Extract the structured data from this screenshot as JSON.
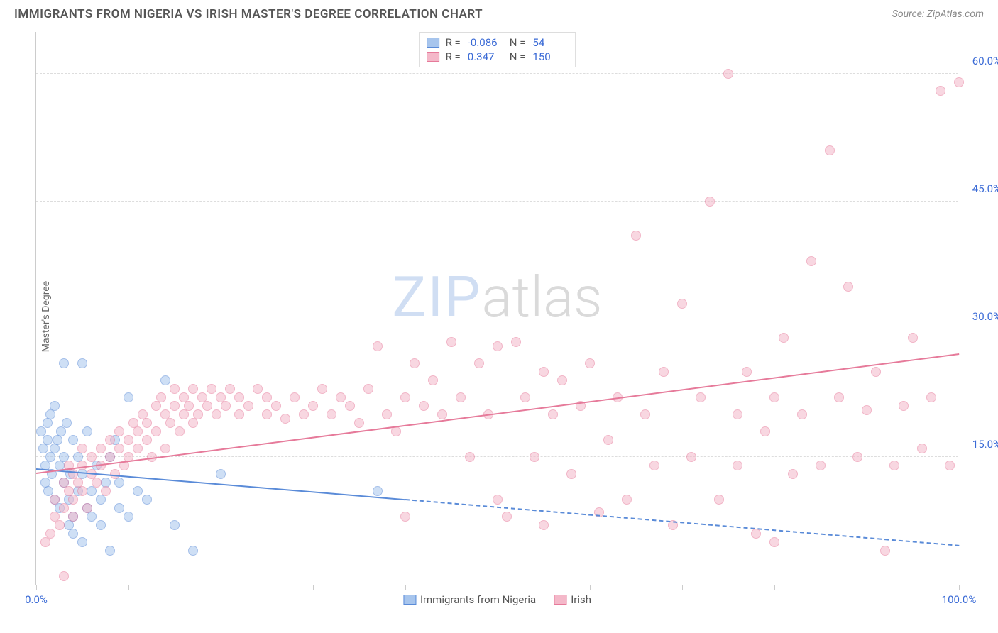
{
  "header": {
    "title": "IMMIGRANTS FROM NIGERIA VS IRISH MASTER'S DEGREE CORRELATION CHART",
    "source_label": "Source:",
    "source_name": "ZipAtlas.com"
  },
  "watermark": {
    "part1": "ZIP",
    "part2": "atlas"
  },
  "chart": {
    "type": "scatter",
    "ylabel": "Master's Degree",
    "xlim": [
      0,
      100
    ],
    "ylim": [
      0,
      65
    ],
    "xtick_min_label": "0.0%",
    "xtick_max_label": "100.0%",
    "ytick_labels": [
      "15.0%",
      "30.0%",
      "45.0%",
      "60.0%"
    ],
    "ytick_values": [
      15,
      30,
      45,
      60
    ],
    "xticks": [
      0,
      10,
      20,
      30,
      40,
      50,
      60,
      70,
      80,
      90,
      100
    ],
    "grid_color": "#dddddd",
    "axis_color": "#cccccc",
    "background_color": "#ffffff",
    "tick_label_color": "#3b6bd6",
    "point_radius": 7,
    "point_opacity": 0.55,
    "series": [
      {
        "name": "Immigrants from Nigeria",
        "stroke": "#5a8bd8",
        "fill": "#a7c5ed",
        "R": "-0.086",
        "N": "54",
        "trend": {
          "y_at_x0": 13.5,
          "y_at_x100": 4.5,
          "solid_until_x": 40
        },
        "points": [
          [
            0.5,
            18
          ],
          [
            0.8,
            16
          ],
          [
            1,
            14
          ],
          [
            1,
            12
          ],
          [
            1.2,
            17
          ],
          [
            1.2,
            19
          ],
          [
            1.3,
            11
          ],
          [
            1.5,
            15
          ],
          [
            1.5,
            20
          ],
          [
            1.7,
            13
          ],
          [
            2,
            10
          ],
          [
            2,
            16
          ],
          [
            2,
            21
          ],
          [
            2.3,
            17
          ],
          [
            2.5,
            14
          ],
          [
            2.5,
            9
          ],
          [
            2.7,
            18
          ],
          [
            3,
            12
          ],
          [
            3,
            15
          ],
          [
            3,
            26
          ],
          [
            3.3,
            19
          ],
          [
            3.5,
            7
          ],
          [
            3.5,
            10
          ],
          [
            3.7,
            13
          ],
          [
            4,
            17
          ],
          [
            4,
            8
          ],
          [
            4,
            6
          ],
          [
            4.5,
            11
          ],
          [
            4.5,
            15
          ],
          [
            5,
            13
          ],
          [
            5,
            26
          ],
          [
            5,
            5
          ],
          [
            5.5,
            9
          ],
          [
            5.5,
            18
          ],
          [
            6,
            8
          ],
          [
            6,
            11
          ],
          [
            6.5,
            14
          ],
          [
            7,
            10
          ],
          [
            7,
            7
          ],
          [
            7.5,
            12
          ],
          [
            8,
            4
          ],
          [
            8,
            15
          ],
          [
            8.5,
            17
          ],
          [
            9,
            9
          ],
          [
            9,
            12
          ],
          [
            10,
            22
          ],
          [
            10,
            8
          ],
          [
            11,
            11
          ],
          [
            12,
            10
          ],
          [
            14,
            24
          ],
          [
            15,
            7
          ],
          [
            17,
            4
          ],
          [
            20,
            13
          ],
          [
            37,
            11
          ]
        ]
      },
      {
        "name": "Irish",
        "stroke": "#e67a9a",
        "fill": "#f4b8c9",
        "R": "0.347",
        "N": "150",
        "trend": {
          "y_at_x0": 13,
          "y_at_x100": 27,
          "solid_until_x": 100
        },
        "points": [
          [
            1,
            5
          ],
          [
            1.5,
            6
          ],
          [
            2,
            8
          ],
          [
            2,
            10
          ],
          [
            2.5,
            7
          ],
          [
            3,
            9
          ],
          [
            3,
            12
          ],
          [
            3,
            1
          ],
          [
            3.5,
            11
          ],
          [
            3.5,
            14
          ],
          [
            4,
            10
          ],
          [
            4,
            8
          ],
          [
            4,
            13
          ],
          [
            4.5,
            12
          ],
          [
            5,
            11
          ],
          [
            5,
            14
          ],
          [
            5,
            16
          ],
          [
            5.5,
            9
          ],
          [
            6,
            13
          ],
          [
            6,
            15
          ],
          [
            6.5,
            12
          ],
          [
            7,
            14
          ],
          [
            7,
            16
          ],
          [
            7.5,
            11
          ],
          [
            8,
            15
          ],
          [
            8,
            17
          ],
          [
            8.5,
            13
          ],
          [
            9,
            16
          ],
          [
            9,
            18
          ],
          [
            9.5,
            14
          ],
          [
            10,
            17
          ],
          [
            10,
            15
          ],
          [
            10.5,
            19
          ],
          [
            11,
            16
          ],
          [
            11,
            18
          ],
          [
            11.5,
            20
          ],
          [
            12,
            17
          ],
          [
            12,
            19
          ],
          [
            12.5,
            15
          ],
          [
            13,
            18
          ],
          [
            13,
            21
          ],
          [
            13.5,
            22
          ],
          [
            14,
            16
          ],
          [
            14,
            20
          ],
          [
            14.5,
            19
          ],
          [
            15,
            21
          ],
          [
            15,
            23
          ],
          [
            15.5,
            18
          ],
          [
            16,
            22
          ],
          [
            16,
            20
          ],
          [
            16.5,
            21
          ],
          [
            17,
            19
          ],
          [
            17,
            23
          ],
          [
            17.5,
            20
          ],
          [
            18,
            22
          ],
          [
            18.5,
            21
          ],
          [
            19,
            23
          ],
          [
            19.5,
            20
          ],
          [
            20,
            22
          ],
          [
            20.5,
            21
          ],
          [
            21,
            23
          ],
          [
            22,
            20
          ],
          [
            22,
            22
          ],
          [
            23,
            21
          ],
          [
            24,
            23
          ],
          [
            25,
            20
          ],
          [
            25,
            22
          ],
          [
            26,
            21
          ],
          [
            27,
            19.5
          ],
          [
            28,
            22
          ],
          [
            29,
            20
          ],
          [
            30,
            21
          ],
          [
            31,
            23
          ],
          [
            32,
            20
          ],
          [
            33,
            22
          ],
          [
            34,
            21
          ],
          [
            35,
            19
          ],
          [
            36,
            23
          ],
          [
            37,
            28
          ],
          [
            38,
            20
          ],
          [
            39,
            18
          ],
          [
            40,
            22
          ],
          [
            40,
            8
          ],
          [
            41,
            26
          ],
          [
            42,
            21
          ],
          [
            43,
            24
          ],
          [
            44,
            20
          ],
          [
            45,
            28.5
          ],
          [
            46,
            22
          ],
          [
            47,
            15
          ],
          [
            48,
            26
          ],
          [
            49,
            20
          ],
          [
            50,
            28
          ],
          [
            50,
            10
          ],
          [
            51,
            8
          ],
          [
            52,
            28.5
          ],
          [
            53,
            22
          ],
          [
            54,
            15
          ],
          [
            55,
            25
          ],
          [
            55,
            7
          ],
          [
            56,
            20
          ],
          [
            57,
            24
          ],
          [
            58,
            13
          ],
          [
            59,
            21
          ],
          [
            60,
            26
          ],
          [
            61,
            8.5
          ],
          [
            62,
            17
          ],
          [
            63,
            22
          ],
          [
            64,
            10
          ],
          [
            65,
            41
          ],
          [
            66,
            20
          ],
          [
            67,
            14
          ],
          [
            68,
            25
          ],
          [
            69,
            7
          ],
          [
            70,
            33
          ],
          [
            71,
            15
          ],
          [
            72,
            22
          ],
          [
            73,
            45
          ],
          [
            74,
            10
          ],
          [
            75,
            60
          ],
          [
            76,
            20
          ],
          [
            76,
            14
          ],
          [
            77,
            25
          ],
          [
            78,
            6
          ],
          [
            79,
            18
          ],
          [
            80,
            22
          ],
          [
            80,
            5
          ],
          [
            81,
            29
          ],
          [
            82,
            13
          ],
          [
            83,
            20
          ],
          [
            84,
            38
          ],
          [
            85,
            14
          ],
          [
            86,
            51
          ],
          [
            87,
            22
          ],
          [
            88,
            35
          ],
          [
            89,
            15
          ],
          [
            90,
            20.5
          ],
          [
            91,
            25
          ],
          [
            92,
            4
          ],
          [
            93,
            14
          ],
          [
            94,
            21
          ],
          [
            95,
            29
          ],
          [
            96,
            16
          ],
          [
            97,
            22
          ],
          [
            98,
            58
          ],
          [
            99,
            14
          ],
          [
            100,
            59
          ]
        ]
      }
    ],
    "legend_bottom": [
      {
        "label": "Immigrants from Nigeria",
        "stroke": "#5a8bd8",
        "fill": "#a7c5ed"
      },
      {
        "label": "Irish",
        "stroke": "#e67a9a",
        "fill": "#f4b8c9"
      }
    ]
  }
}
